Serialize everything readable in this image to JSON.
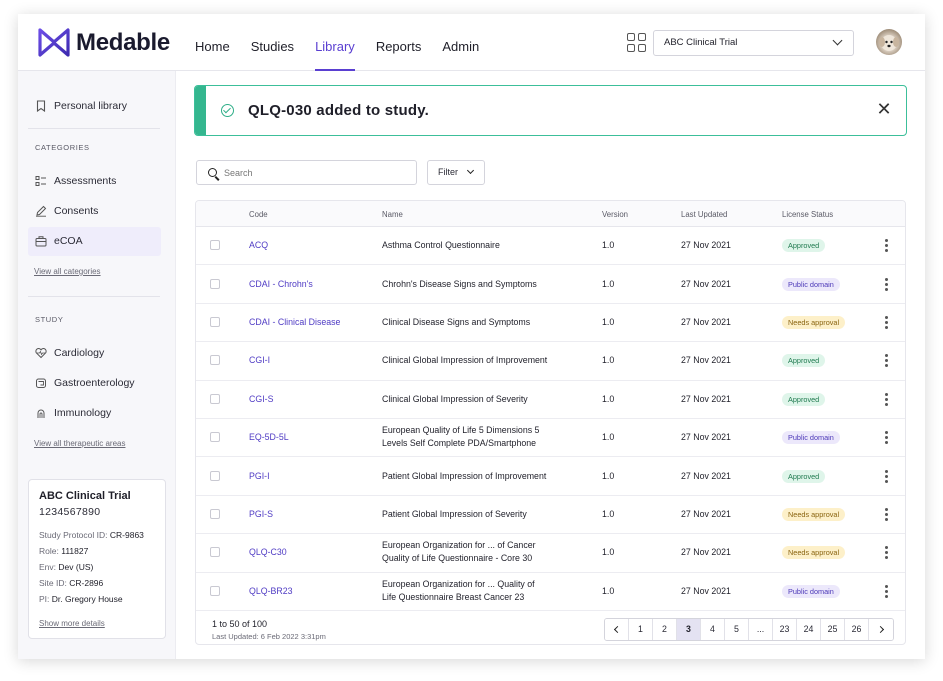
{
  "app": {
    "logo_text": "Medable",
    "nav": [
      "Home",
      "Studies",
      "Library",
      "Reports",
      "Admin"
    ],
    "active_nav": "Library",
    "study_selector": "ABC Clinical Trial",
    "accent_color": "#5a3fd1"
  },
  "sidebar": {
    "personal_library": "Personal library",
    "categories_heading": "CATEGORIES",
    "categories": [
      {
        "label": "Assessments",
        "icon": "assessments-icon"
      },
      {
        "label": "Consents",
        "icon": "pen-icon"
      },
      {
        "label": "eCOA",
        "icon": "briefcase-icon",
        "active": true
      }
    ],
    "view_all_categories": "View all categories",
    "study_heading": "STUDY",
    "study_items": [
      {
        "label": "Cardiology",
        "icon": "heart-icon"
      },
      {
        "label": "Gastroenterology",
        "icon": "stomach-icon"
      },
      {
        "label": "Immunology",
        "icon": "immune-icon"
      }
    ],
    "view_all_areas": "View all therapeutic areas",
    "card": {
      "title": "ABC Clinical Trial",
      "number": "1234567890",
      "protocol_label": "Study Protocol ID:",
      "protocol_value": "CR-9863",
      "role_label": "Role:",
      "role_value": "111827",
      "env_label": "Env:",
      "env_value": "Dev (US)",
      "site_label": "Site ID:",
      "site_value": "CR-2896",
      "pi_label": "PI:",
      "pi_value": "Dr. Gregory House",
      "more_link": "Show more details"
    }
  },
  "toast": {
    "message": "QLQ-030 added to study.",
    "color": "#34b68f"
  },
  "toolbar": {
    "search_placeholder": "Search",
    "filter_label": "Filter"
  },
  "table": {
    "headers": {
      "code": "Code",
      "name": "Name",
      "version": "Version",
      "updated": "Last Updated",
      "license": "License Status"
    },
    "rows": [
      {
        "code": "ACQ",
        "name": [
          "Asthma Control Questionnaire"
        ],
        "version": "1.0",
        "updated": "27 Nov 2021",
        "status": "Approved",
        "status_type": "approved"
      },
      {
        "code": "CDAI - Chrohn's",
        "name": [
          "Chrohn's Disease Signs and Symptoms"
        ],
        "version": "1.0",
        "updated": "27 Nov 2021",
        "status": "Public domain",
        "status_type": "public"
      },
      {
        "code": "CDAI - Clinical Disease",
        "name": [
          "Clinical Disease Signs and Symptoms"
        ],
        "version": "1.0",
        "updated": "27 Nov 2021",
        "status": "Needs approval",
        "status_type": "needs"
      },
      {
        "code": "CGI-I",
        "name": [
          "Clinical Global Impression of Improvement"
        ],
        "version": "1.0",
        "updated": "27 Nov 2021",
        "status": "Approved",
        "status_type": "approved"
      },
      {
        "code": "CGI-S",
        "name": [
          "Clinical Global Impression of Severity"
        ],
        "version": "1.0",
        "updated": "27 Nov 2021",
        "status": "Approved",
        "status_type": "approved"
      },
      {
        "code": "EQ-5D-5L",
        "name": [
          "European Quality of Life 5 Dimensions 5",
          "Levels Self Complete PDA/Smartphone"
        ],
        "version": "1.0",
        "updated": "27 Nov 2021",
        "status": "Public domain",
        "status_type": "public"
      },
      {
        "code": "PGI-I",
        "name": [
          "Patient Global Impression of Improvement"
        ],
        "version": "1.0",
        "updated": "27 Nov 2021",
        "status": "Approved",
        "status_type": "approved"
      },
      {
        "code": "PGI-S",
        "name": [
          "Patient Global Impression of Severity"
        ],
        "version": "1.0",
        "updated": "27 Nov 2021",
        "status": "Needs approval",
        "status_type": "needs"
      },
      {
        "code": "QLQ-C30",
        "name": [
          "European Organization for ...  of Cancer",
          "Quality of Life Questionnaire - Core 30"
        ],
        "version": "1.0",
        "updated": "27 Nov 2021",
        "status": "Needs approval",
        "status_type": "needs"
      },
      {
        "code": "QLQ-BR23",
        "name": [
          "European Organization for ... Quality of",
          "Life Questionnaire Breast Cancer 23"
        ],
        "version": "1.0",
        "updated": "27 Nov 2021",
        "status": "Public domain",
        "status_type": "public"
      }
    ],
    "count_text": "1 to 50 of 100",
    "last_updated": "Last Updated: 6 Feb 2022 3:31pm"
  },
  "pagination": {
    "pages": [
      "1",
      "2",
      "3",
      "4",
      "5",
      "...",
      "23",
      "24",
      "25",
      "26"
    ],
    "current": "3"
  }
}
